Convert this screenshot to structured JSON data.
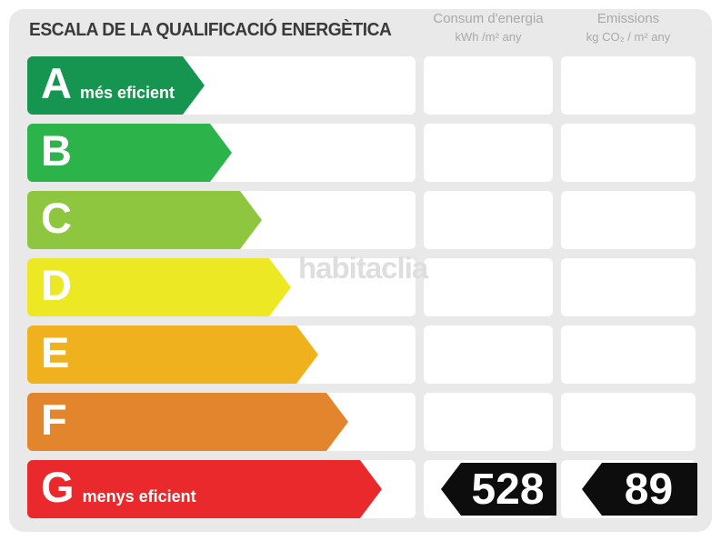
{
  "title": "ESCALA DE LA QUALIFICACIÓ ENERGÈTICA",
  "watermark": "habitaclia",
  "columns": {
    "consum": {
      "line1": "Consum d'energia",
      "line2": "kWh /m²  any"
    },
    "emissions": {
      "line1": "Emissions",
      "line2": "kg CO₂ / m²  any"
    }
  },
  "scale": {
    "rows": [
      {
        "letter": "A",
        "label": "més eficient",
        "color": "#159550",
        "arrow_width": 195
      },
      {
        "letter": "B",
        "label": "",
        "color": "#2cb34a",
        "arrow_width": 225
      },
      {
        "letter": "C",
        "label": "",
        "color": "#8ec63f",
        "arrow_width": 258
      },
      {
        "letter": "D",
        "label": "",
        "color": "#ece824",
        "arrow_width": 290
      },
      {
        "letter": "E",
        "label": "",
        "color": "#efb11d",
        "arrow_width": 320
      },
      {
        "letter": "F",
        "label": "",
        "color": "#e2852d",
        "arrow_width": 353
      },
      {
        "letter": "G",
        "label": "menys eficient",
        "color": "#e9292c",
        "arrow_width": 390
      }
    ]
  },
  "values": {
    "rated_letter": "G",
    "consum": "528",
    "emissions": "89",
    "badge_color": "#0d0d0d"
  },
  "chart_data": {
    "type": "bar",
    "title": "ESCALA DE LA QUALIFICACIÓ ENERGÈTICA",
    "categories": [
      "A",
      "B",
      "C",
      "D",
      "E",
      "F",
      "G"
    ],
    "category_labels": [
      "A més eficient",
      "B",
      "C",
      "D",
      "E",
      "F",
      "G menys eficient"
    ],
    "bar_colors": [
      "#159550",
      "#2cb34a",
      "#8ec63f",
      "#ece824",
      "#efb11d",
      "#e2852d",
      "#e9292c"
    ],
    "series": [
      {
        "name": "Consum d'energia (kWh/m² any)",
        "values": [
          null,
          null,
          null,
          null,
          null,
          null,
          528
        ]
      },
      {
        "name": "Emissions (kg CO₂/m² any)",
        "values": [
          null,
          null,
          null,
          null,
          null,
          null,
          89
        ]
      }
    ],
    "rating": "G",
    "legend_position": "none",
    "grid": false
  }
}
